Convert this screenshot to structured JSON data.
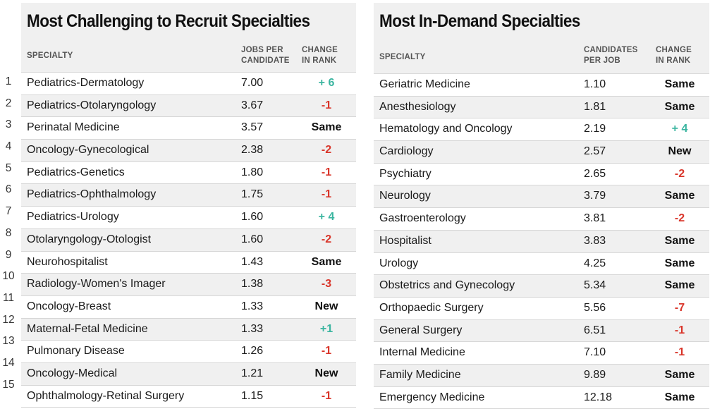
{
  "colors": {
    "up": "#3ab5a0",
    "down": "#d9352a",
    "neutral": "#111111"
  },
  "chart_data": [
    {
      "type": "table",
      "title": "Most Challenging to Recruit Specialties",
      "columns": [
        "SPECIALTY",
        "JOBS PER CANDIDATE",
        "CHANGE IN RANK"
      ],
      "rows": [
        {
          "rank": "1",
          "specialty": "Pediatrics-Dermatology",
          "value": "7.00",
          "change": "+ 6",
          "dir": "up"
        },
        {
          "rank": "2",
          "specialty": "Pediatrics-Otolaryngology",
          "value": "3.67",
          "change": "-1",
          "dir": "down"
        },
        {
          "rank": "3",
          "specialty": "Perinatal Medicine",
          "value": "3.57",
          "change": "Same",
          "dir": "neutral"
        },
        {
          "rank": "4",
          "specialty": "Oncology-Gynecological",
          "value": "2.38",
          "change": "-2",
          "dir": "down"
        },
        {
          "rank": "5",
          "specialty": "Pediatrics-Genetics",
          "value": "1.80",
          "change": "-1",
          "dir": "down"
        },
        {
          "rank": "6",
          "specialty": "Pediatrics-Ophthalmology",
          "value": "1.75",
          "change": "-1",
          "dir": "down"
        },
        {
          "rank": "7",
          "specialty": "Pediatrics-Urology",
          "value": "1.60",
          "change": "+ 4",
          "dir": "up"
        },
        {
          "rank": "8",
          "specialty": "Otolaryngology-Otologist",
          "value": "1.60",
          "change": "-2",
          "dir": "down"
        },
        {
          "rank": "9",
          "specialty": "Neurohospitalist",
          "value": "1.43",
          "change": "Same",
          "dir": "neutral"
        },
        {
          "rank": "10",
          "specialty": "Radiology-Women's Imager",
          "value": "1.38",
          "change": "-3",
          "dir": "down"
        },
        {
          "rank": "11",
          "specialty": "Oncology-Breast",
          "value": "1.33",
          "change": "New",
          "dir": "neutral"
        },
        {
          "rank": "12",
          "specialty": "Maternal-Fetal Medicine",
          "value": "1.33",
          "change": "+1",
          "dir": "up"
        },
        {
          "rank": "13",
          "specialty": "Pulmonary Disease",
          "value": "1.26",
          "change": "-1",
          "dir": "down"
        },
        {
          "rank": "14",
          "specialty": "Oncology-Medical",
          "value": "1.21",
          "change": "New",
          "dir": "neutral"
        },
        {
          "rank": "15",
          "specialty": "Ophthalmology-Retinal Surgery",
          "value": "1.15",
          "change": "-1",
          "dir": "down"
        }
      ]
    },
    {
      "type": "table",
      "title": "Most In-Demand Specialties",
      "columns": [
        "SPECIALTY",
        "CANDIDATES PER JOB",
        "CHANGE IN RANK"
      ],
      "rows": [
        {
          "specialty": "Geriatric Medicine",
          "value": "1.10",
          "change": "Same",
          "dir": "neutral"
        },
        {
          "specialty": "Anesthesiology",
          "value": "1.81",
          "change": "Same",
          "dir": "neutral"
        },
        {
          "specialty": "Hematology and Oncology",
          "value": "2.19",
          "change": "+ 4",
          "dir": "up"
        },
        {
          "specialty": "Cardiology",
          "value": "2.57",
          "change": "New",
          "dir": "neutral"
        },
        {
          "specialty": "Psychiatry",
          "value": "2.65",
          "change": "-2",
          "dir": "down"
        },
        {
          "specialty": "Neurology",
          "value": "3.79",
          "change": "Same",
          "dir": "neutral"
        },
        {
          "specialty": "Gastroenterology",
          "value": "3.81",
          "change": "-2",
          "dir": "down"
        },
        {
          "specialty": "Hospitalist",
          "value": "3.83",
          "change": "Same",
          "dir": "neutral"
        },
        {
          "specialty": "Urology",
          "value": "4.25",
          "change": "Same",
          "dir": "neutral"
        },
        {
          "specialty": "Obstetrics and Gynecology",
          "value": "5.34",
          "change": "Same",
          "dir": "neutral"
        },
        {
          "specialty": "Orthopaedic Surgery",
          "value": "5.56",
          "change": "-7",
          "dir": "down"
        },
        {
          "specialty": "General Surgery",
          "value": "6.51",
          "change": "-1",
          "dir": "down"
        },
        {
          "specialty": "Internal Medicine",
          "value": "7.10",
          "change": "-1",
          "dir": "down"
        },
        {
          "specialty": "Family Medicine",
          "value": "9.89",
          "change": "Same",
          "dir": "neutral"
        },
        {
          "specialty": "Emergency Medicine",
          "value": "12.18",
          "change": "Same",
          "dir": "neutral"
        }
      ]
    }
  ]
}
